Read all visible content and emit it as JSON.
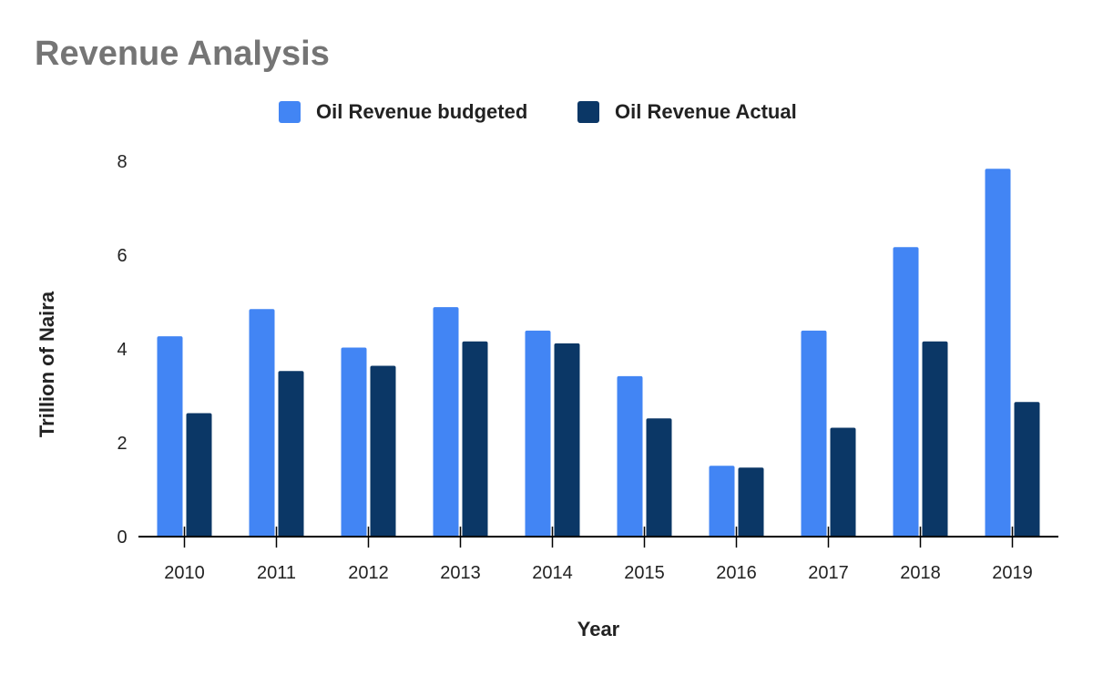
{
  "chart_data": {
    "type": "bar",
    "title": "Revenue Analysis",
    "xlabel": "Year",
    "ylabel": "Trillion of Naira",
    "categories": [
      "2010",
      "2011",
      "2012",
      "2013",
      "2014",
      "2015",
      "2016",
      "2017",
      "2018",
      "2019"
    ],
    "series": [
      {
        "name": "Oil Revenue budgeted",
        "color": "#4285f4",
        "values": [
          4.27,
          4.85,
          4.03,
          4.89,
          4.39,
          3.42,
          1.51,
          4.39,
          6.17,
          7.84
        ]
      },
      {
        "name": "Oil Revenue Actual",
        "color": "#0b3766",
        "values": [
          2.63,
          3.53,
          3.64,
          4.16,
          4.12,
          2.52,
          1.47,
          2.32,
          4.16,
          2.87
        ]
      }
    ],
    "ylim": [
      0,
      8
    ],
    "yticks": [
      "0",
      "2",
      "4",
      "6",
      "8"
    ],
    "grid": false,
    "legend": "top-center"
  }
}
